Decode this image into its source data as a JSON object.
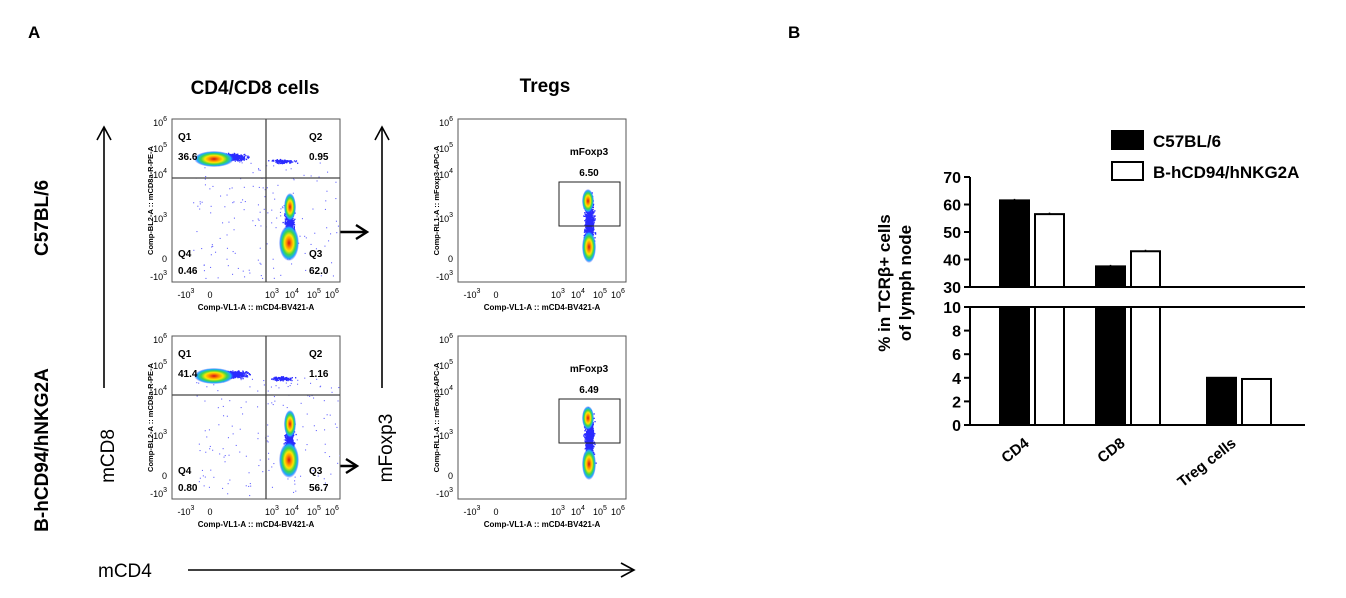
{
  "panel_a": {
    "letter": "A",
    "col_titles": [
      "CD4/CD8 cells",
      "Tregs"
    ],
    "row_labels": [
      "C57BL/6",
      "B-hCD94/hNKG2A"
    ],
    "axis_mcd8": "mCD8",
    "axis_mfoxp3": "mFoxp3",
    "axis_mcd4": "mCD4",
    "plot_ylabel_cd8": "Comp-BL2-A :: mCD8a-R-PE-A",
    "plot_ylabel_foxp3": "Comp-RL1-A :: mFoxp3-APC-A",
    "plot_xlabel": "Comp-VL1-A :: mCD4-BV421-A",
    "quad_names": [
      "Q1",
      "Q2",
      "Q3",
      "Q4"
    ],
    "gate_name": "mFoxp3",
    "plots": [
      {
        "q1": "36.6",
        "q2": "0.95",
        "q3": "62.0",
        "q4": "0.46",
        "gate": "6.50"
      },
      {
        "q1": "41.4",
        "q2": "1.16",
        "q3": "56.7",
        "q4": "0.80",
        "gate": "6.49"
      }
    ]
  },
  "panel_b": {
    "letter": "B"
  },
  "chart_data": {
    "type": "bar",
    "categories": [
      "CD4",
      "CD8",
      "Treg cells"
    ],
    "series": [
      {
        "name": "C57BL/6",
        "values": [
          61.5,
          37.5,
          4.0
        ],
        "color": "#000000"
      },
      {
        "name": "B-hCD94/hNKG2A",
        "values": [
          56.5,
          43.0,
          3.9
        ],
        "color": "#ffffff"
      }
    ],
    "ylabel": [
      "% in TCRβ+ cells",
      "of lymph node"
    ],
    "broken_axis": true,
    "upper_range": [
      30,
      70
    ],
    "upper_ticks": [
      30,
      40,
      50,
      60,
      70
    ],
    "lower_range": [
      0,
      10
    ],
    "lower_ticks": [
      0,
      2,
      4,
      6,
      8,
      10
    ],
    "legend_position": "top-right"
  }
}
